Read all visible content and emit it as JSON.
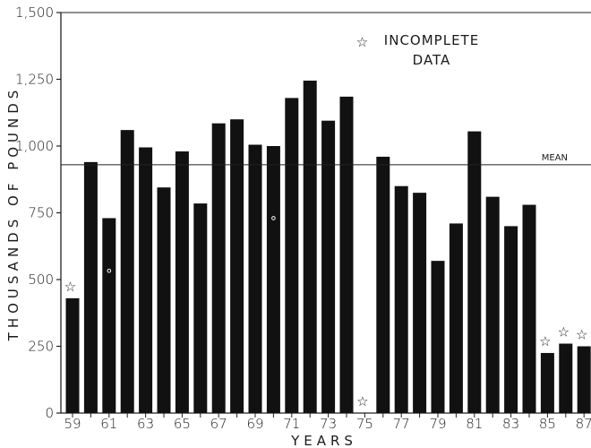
{
  "chart_data": {
    "type": "bar",
    "categories": [
      "59",
      "60",
      "61",
      "62",
      "63",
      "64",
      "65",
      "66",
      "67",
      "68",
      "69",
      "70",
      "71",
      "72",
      "73",
      "74",
      "75",
      "76",
      "77",
      "78",
      "79",
      "80",
      "81",
      "82",
      "83",
      "84",
      "85",
      "86",
      "87"
    ],
    "values": [
      430,
      940,
      730,
      1060,
      995,
      845,
      980,
      785,
      1085,
      1100,
      1005,
      1000,
      1180,
      1245,
      1095,
      1185,
      0,
      960,
      850,
      825,
      570,
      710,
      1055,
      810,
      700,
      780,
      225,
      260,
      250
    ],
    "incomplete": [
      "59",
      "75",
      "85",
      "86",
      "87"
    ],
    "small_markers": [
      "61",
      "70"
    ],
    "x_tick_labels": [
      "59",
      "61",
      "63",
      "65",
      "67",
      "69",
      "71",
      "73",
      "75",
      "77",
      "79",
      "81",
      "83",
      "85",
      "87"
    ],
    "y_ticks": [
      0,
      250,
      500,
      750,
      1000,
      1250,
      1500
    ],
    "y_tick_labels": [
      "0",
      "250",
      "500",
      "750",
      "1,000",
      "1,250",
      "1,500"
    ],
    "ylim": [
      0,
      1500
    ],
    "mean": 930,
    "mean_label": "MEAN",
    "xlabel": "YEARS",
    "ylabel": "THOUSANDS OF POUNDS",
    "legend": {
      "symbol": "☆",
      "line1": "INCOMPLETE",
      "line2": "DATA",
      "position": "top-center"
    },
    "bar_color": "#111111",
    "grid": false
  }
}
